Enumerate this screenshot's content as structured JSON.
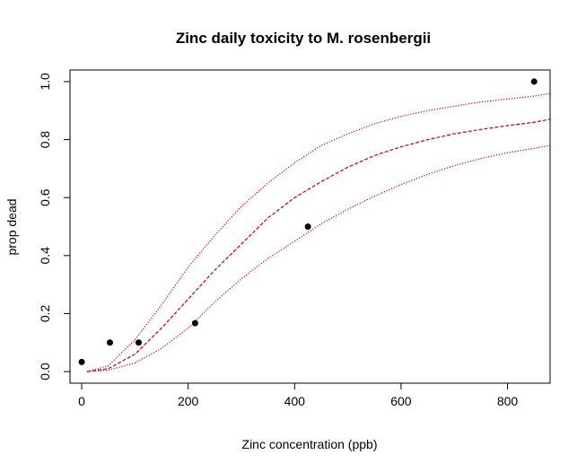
{
  "chart_data": {
    "type": "scatter",
    "title": "Zinc daily toxicity to M. rosenbergii",
    "xlabel": "Zinc concentration (ppb)",
    "ylabel": "prop dead",
    "xlim": [
      -22,
      880
    ],
    "ylim": [
      -0.04,
      1.04
    ],
    "x_ticks": [
      0,
      200,
      400,
      600,
      800
    ],
    "x_tick_labels": [
      "0",
      "200",
      "400",
      "600",
      "800"
    ],
    "y_ticks": [
      0.0,
      0.2,
      0.4,
      0.6,
      0.8,
      1.0
    ],
    "y_tick_labels": [
      "0.0",
      "0.2",
      "0.4",
      "0.6",
      "0.8",
      "1.0"
    ],
    "grid": false,
    "legend": "none",
    "points": {
      "name": "observed",
      "color": "#000000",
      "x": [
        0,
        53,
        107,
        213,
        425,
        850
      ],
      "y": [
        0.033,
        0.1,
        0.1,
        0.167,
        0.5,
        1.0
      ]
    },
    "curves": [
      {
        "name": "fit",
        "style": "dashed",
        "color": "#cc0000",
        "x": [
          10,
          50,
          100,
          150,
          200,
          250,
          300,
          350,
          400,
          450,
          500,
          550,
          600,
          650,
          700,
          750,
          800,
          850,
          880
        ],
        "y": [
          0.0,
          0.01,
          0.06,
          0.15,
          0.25,
          0.35,
          0.44,
          0.53,
          0.6,
          0.655,
          0.705,
          0.745,
          0.775,
          0.8,
          0.82,
          0.835,
          0.848,
          0.86,
          0.87
        ]
      },
      {
        "name": "upper bound",
        "style": "dotted",
        "color": "#cc0000",
        "x": [
          10,
          50,
          100,
          150,
          200,
          250,
          300,
          350,
          400,
          450,
          500,
          550,
          600,
          650,
          700,
          750,
          800,
          850,
          880
        ],
        "y": [
          0.0,
          0.02,
          0.11,
          0.23,
          0.36,
          0.47,
          0.57,
          0.65,
          0.72,
          0.78,
          0.82,
          0.855,
          0.88,
          0.9,
          0.915,
          0.93,
          0.94,
          0.95,
          0.96
        ]
      },
      {
        "name": "lower bound",
        "style": "dotted",
        "color": "#cc0000",
        "x": [
          10,
          50,
          100,
          150,
          200,
          250,
          300,
          350,
          400,
          450,
          500,
          550,
          600,
          650,
          700,
          750,
          800,
          850,
          880
        ],
        "y": [
          0.0,
          0.005,
          0.03,
          0.08,
          0.15,
          0.24,
          0.32,
          0.39,
          0.45,
          0.51,
          0.56,
          0.605,
          0.645,
          0.68,
          0.71,
          0.735,
          0.755,
          0.77,
          0.78
        ]
      }
    ]
  }
}
